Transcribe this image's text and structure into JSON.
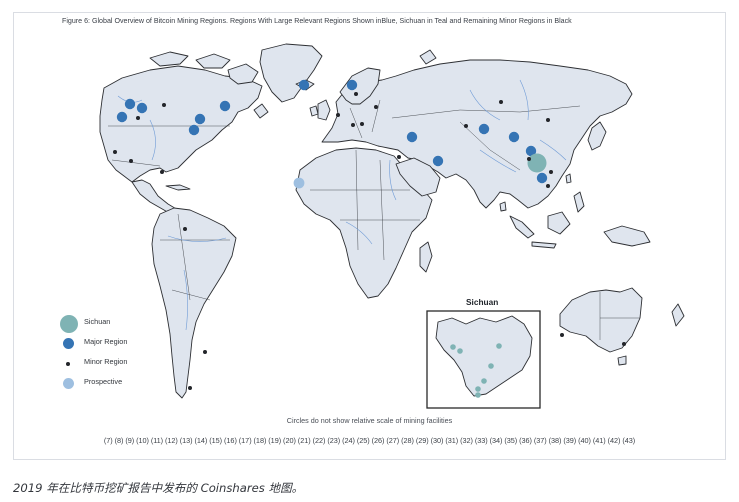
{
  "figure": {
    "title": "Figure 6: Global Overview of Bitcoin Mining Regions. Regions With Large Relevant Regions Shown inBlue, Sichuan in Teal and Remaining Minor Regions in Black",
    "inset_title": "Sichuan",
    "note": "Circles do not show relative scale of mining facilities",
    "references": "(7) (8) (9) (10) (11) (12) (13) (14) (15) (16) (17) (18) (19) (20) (21) (22) (23) (24) (25) (26) (27) (28) (29) (30) (31) (32) (33) (34) (35) (36) (37) (38) (39) (40) (41) (42) (43)"
  },
  "legend": [
    {
      "label": "Sichuan",
      "category": "sichuan"
    },
    {
      "label": "Major Region",
      "category": "major"
    },
    {
      "label": "Minor Region",
      "category": "minor"
    },
    {
      "label": "Prospective",
      "category": "prospective"
    }
  ],
  "colors": {
    "sichuan": "#7fb3b4",
    "major": "#3574b4",
    "minor": "#23252a",
    "prospective": "#9ebfe0",
    "land": "#dfe5ee",
    "coast": "#2d2f33",
    "river": "#6f9bd6"
  },
  "caption": "2019 年在比特币挖矿报告中发布的 Coinshares 地图。"
}
